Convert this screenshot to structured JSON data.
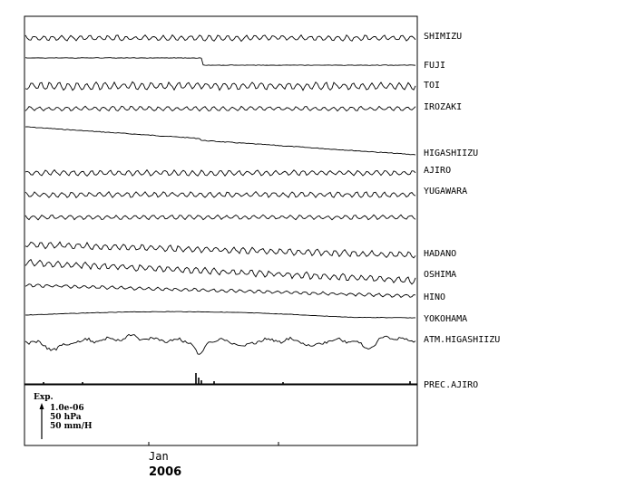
{
  "chart_data": {
    "type": "line",
    "stations": [
      {
        "name": "SHIMIZU",
        "kind": "wavy",
        "amp": 2.5,
        "trend": 0
      },
      {
        "name": "FUJI",
        "kind": "step",
        "amp": 0.6,
        "trend": 0
      },
      {
        "name": "TOI",
        "kind": "wavy",
        "amp": 3.5,
        "trend": 0
      },
      {
        "name": "IROZAKI",
        "kind": "wavy",
        "amp": 2.0,
        "trend": 0
      },
      {
        "name": "HIGASHIIZU",
        "kind": "trend",
        "amp": 0.8,
        "trend": 29
      },
      {
        "name": "AJIRO",
        "kind": "wavy",
        "amp": 2.5,
        "trend": 0
      },
      {
        "name": "YUGAWARA",
        "kind": "wavy",
        "amp": 2.5,
        "trend": 0
      },
      {
        "name": "",
        "kind": "wavy",
        "amp": 2.0,
        "trend": 0
      },
      {
        "name": "HADANO",
        "kind": "wavy",
        "amp": 3.0,
        "trend": 12
      },
      {
        "name": "OSHIMA",
        "kind": "wavy",
        "amp": 3.0,
        "trend": 20
      },
      {
        "name": "HINO",
        "kind": "wavy",
        "amp": 1.5,
        "trend": 12
      },
      {
        "name": "YOKOHAMA",
        "kind": "hump",
        "amp": 0.5,
        "trend": 0
      },
      {
        "name": "ATM.HIGASHIIZU",
        "kind": "atm",
        "amp": 6.0,
        "trend": 0
      },
      {
        "name": "PREC.AJIRO",
        "kind": "prec",
        "amp": 0,
        "trend": 0
      }
    ],
    "legend": {
      "title": "Exp.",
      "lines": [
        "1.0e-06",
        "50 hPa",
        "50 mm/H"
      ]
    },
    "x_tick_label": "Jan",
    "x_year_label": "2006",
    "grid": true
  }
}
